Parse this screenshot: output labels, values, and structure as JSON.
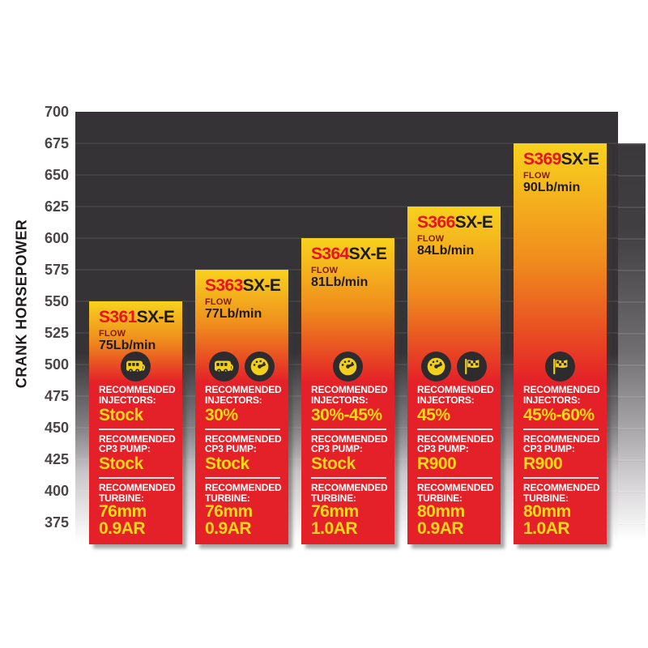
{
  "colors": {
    "page_background": "#ffffff",
    "plot_background": "#353335",
    "gridline": "rgba(255,255,255,0.07)",
    "bar_gradient_top_yellow": "#f8d21d",
    "bar_gradient_mid_orange": "#ef8a1d",
    "bar_red": "#e42128",
    "model_number_red": "#e8131d",
    "model_suffix_black": "#1d1b1c",
    "flow_label_maroon": "#7f1c0d",
    "section_label_white": "#ffffff",
    "value_yellow": "#ffd911",
    "divider": "rgba(255,255,255,0.9)",
    "icon_circle_dark": "#2d2b2d",
    "icon_glyph_yellow": "#f2cf1b",
    "axis_title_color": "#1d1a1b",
    "tick_label_color": "#4a4647",
    "bar_shadow": "rgba(60,60,60,0.45)"
  },
  "y_axis": {
    "title": "CRANK HORSEPOWER",
    "tick_labels": [
      "700",
      "675",
      "650",
      "625",
      "600",
      "575",
      "550",
      "525",
      "500",
      "475",
      "450",
      "425",
      "400",
      "375"
    ]
  },
  "chart_data": {
    "type": "bar",
    "ylabel": "CRANK HORSEPOWER",
    "ylim": [
      375,
      700
    ],
    "ytick_step": 25,
    "yticks": [
      700,
      675,
      650,
      625,
      600,
      575,
      550,
      525,
      500,
      475,
      450,
      425,
      400,
      375
    ],
    "grid": "horizontal",
    "legend_position": "none",
    "categories": [
      "S361SX-E",
      "S363SX-E",
      "S364SX-E",
      "S366SX-E",
      "S369SX-E"
    ],
    "values": [
      550,
      575,
      600,
      625,
      675
    ],
    "bars": [
      {
        "model": "S361",
        "model_suffix": "SX-E",
        "crank_hp": 550,
        "flow_label": "FLOW",
        "flow": "75Lb/min",
        "icons": [
          "camper-icon"
        ],
        "injectors_label": "RECOMMENDED INJECTORS:",
        "injectors": "Stock",
        "cp3_label": "RECOMMENDED CP3 PUMP:",
        "cp3_pump": "Stock",
        "turbine_label": "RECOMMENDED TURBINE:",
        "turbine": [
          "76mm",
          "0.9AR"
        ]
      },
      {
        "model": "S363",
        "model_suffix": "SX-E",
        "crank_hp": 575,
        "flow_label": "FLOW",
        "flow": "77Lb/min",
        "icons": [
          "camper-icon",
          "gauge-icon"
        ],
        "injectors_label": "RECOMMENDED INJECTORS:",
        "injectors": "30%",
        "cp3_label": "RECOMMENDED CP3 PUMP:",
        "cp3_pump": "Stock",
        "turbine_label": "RECOMMENDED TURBINE:",
        "turbine": [
          "76mm",
          "0.9AR"
        ]
      },
      {
        "model": "S364",
        "model_suffix": "SX-E",
        "crank_hp": 600,
        "flow_label": "FLOW",
        "flow": "81Lb/min",
        "icons": [
          "gauge-icon"
        ],
        "injectors_label": "RECOMMENDED INJECTORS:",
        "injectors": "30%-45%",
        "cp3_label": "RECOMMENDED CP3 PUMP:",
        "cp3_pump": "Stock",
        "turbine_label": "RECOMMENDED TURBINE:",
        "turbine": [
          "76mm",
          "1.0AR"
        ]
      },
      {
        "model": "S366",
        "model_suffix": "SX-E",
        "crank_hp": 625,
        "flow_label": "FLOW",
        "flow": "84Lb/min",
        "icons": [
          "gauge-icon",
          "flag-icon"
        ],
        "injectors_label": "RECOMMENDED INJECTORS:",
        "injectors": "45%",
        "cp3_label": "RECOMMENDED CP3 PUMP:",
        "cp3_pump": "R900",
        "turbine_label": "RECOMMENDED TURBINE:",
        "turbine": [
          "80mm",
          "0.9AR"
        ]
      },
      {
        "model": "S369",
        "model_suffix": "SX-E",
        "crank_hp": 675,
        "flow_label": "FLOW",
        "flow": "90Lb/min",
        "icons": [
          "flag-icon"
        ],
        "injectors_label": "RECOMMENDED INJECTORS:",
        "injectors": "45%-60%",
        "cp3_label": "RECOMMENDED CP3 PUMP:",
        "cp3_pump": "R900",
        "turbine_label": "RECOMMENDED TURBINE:",
        "turbine": [
          "80mm",
          "1.0AR"
        ]
      }
    ]
  }
}
